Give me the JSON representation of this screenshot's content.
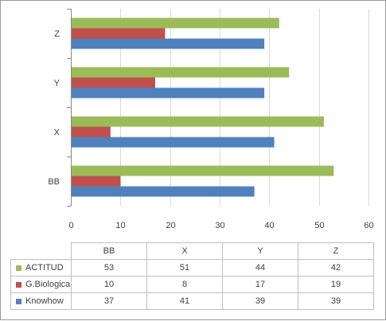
{
  "chart_data": {
    "type": "bar",
    "orientation": "horizontal",
    "categories": [
      "BB",
      "X",
      "Y",
      "Z"
    ],
    "series": [
      {
        "name": "Knowhow",
        "values": [
          37,
          41,
          39,
          39
        ],
        "color": "#4f81bd"
      },
      {
        "name": "G.Biologica",
        "values": [
          10,
          8,
          17,
          19
        ],
        "color": "#c0504d"
      },
      {
        "name": "ACTITUD",
        "values": [
          53,
          51,
          44,
          42
        ],
        "color": "#9bbb59"
      }
    ],
    "xlim": [
      0,
      60
    ],
    "xticks": [
      "0",
      "10",
      "20",
      "30",
      "40",
      "50",
      "60"
    ],
    "grid": true,
    "legend": "data table below chart",
    "table_row_order": [
      "ACTITUD",
      "G.Biologica",
      "Knowhow"
    ]
  }
}
